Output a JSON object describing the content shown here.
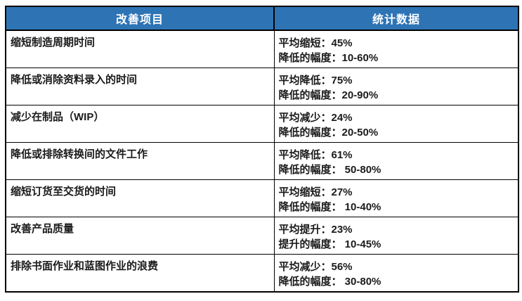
{
  "colors": {
    "header_bg": "#2E74B5",
    "header_text": "#FFFFFF",
    "border": "#000000",
    "cell_text": "#1A1A1A",
    "page_bg": "#FFFFFF"
  },
  "table": {
    "columns": [
      {
        "label": "改善项目"
      },
      {
        "label": "统计数据"
      }
    ],
    "rows": [
      {
        "item": "缩短制造周期时间",
        "stat_line1": "平均缩短：45%",
        "stat_line2": "降低的幅度：10-60%"
      },
      {
        "item": "降低或消除资料录入的时间",
        "stat_line1": "平均降低：75%",
        "stat_line2": "降低的幅度：20-90%"
      },
      {
        "item": "减少在制品（WIP）",
        "stat_line1": "平均减少：24%",
        "stat_line2": "降低的幅度：20-50%"
      },
      {
        "item": "降低或排除转换间的文件工作",
        "stat_line1": "平均降低：61%",
        "stat_line2": "降低的幅度： 50-80%"
      },
      {
        "item": "缩短订货至交货的时间",
        "stat_line1": "平均缩短：27%",
        "stat_line2": "降低的幅度： 10-40%"
      },
      {
        "item": "改善产品质量",
        "stat_line1": "平均提升：23%",
        "stat_line2": "提升的幅度： 10-45%"
      },
      {
        "item": "排除书面作业和蓝图作业的浪费",
        "stat_line1": "平均减少：56%",
        "stat_line2": "降低的幅度： 30-80%"
      }
    ]
  }
}
